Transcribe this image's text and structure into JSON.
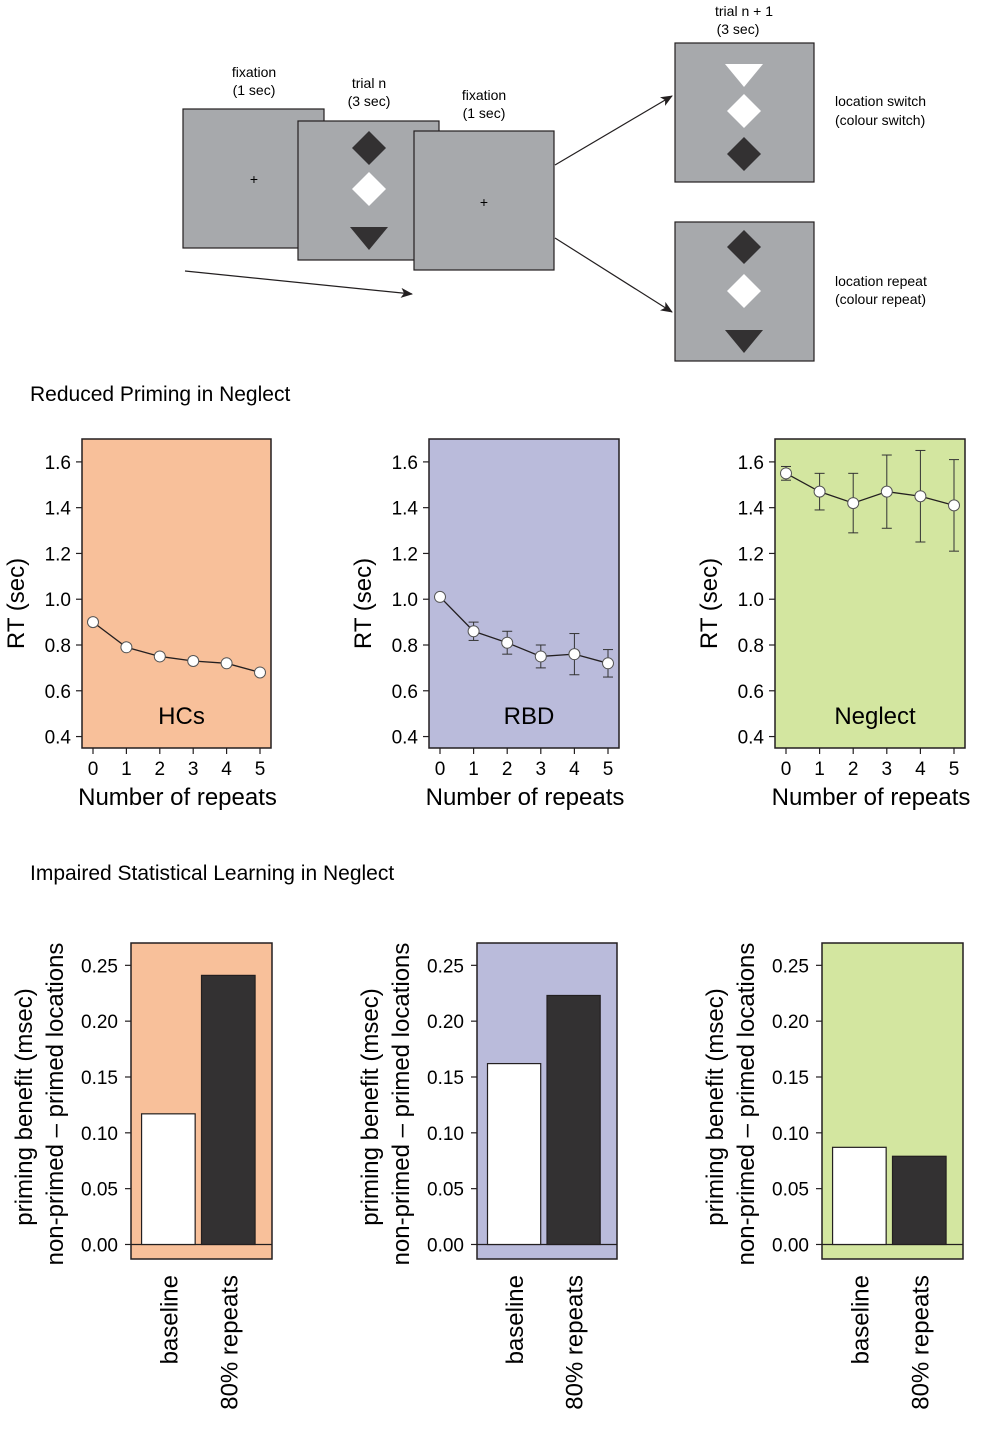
{
  "diagram": {
    "screens": {
      "fixation1": {
        "title": "fixation",
        "duration": "(1 sec)"
      },
      "trial_n": {
        "title": "trial n",
        "duration": "(3 sec)"
      },
      "fixation2": {
        "title": "fixation",
        "duration": "(1 sec)"
      },
      "trial_n1": {
        "title": "trial n + 1",
        "duration": "(3 sec)"
      }
    },
    "fixation_symbol": "+",
    "outcomes": {
      "switch": {
        "line1": "location switch",
        "line2": "(colour switch)"
      },
      "repeat": {
        "line1": "location repeat",
        "line2": "(colour repeat)"
      }
    },
    "colors": {
      "screen": "#a7a9ac",
      "dark": "#333132",
      "light": "#ffffff"
    }
  },
  "sections": {
    "priming": "Reduced Priming in Neglect",
    "learning": "Impaired Statistical Learning in Neglect"
  },
  "chart_data": [
    {
      "type": "line",
      "panel_label": "HCs",
      "bg": "#f8c09a",
      "x": [
        0,
        1,
        2,
        3,
        4,
        5
      ],
      "y": [
        0.9,
        0.79,
        0.75,
        0.73,
        0.72,
        0.68
      ],
      "err": [
        0,
        0,
        0,
        0,
        0,
        0
      ],
      "xlabel": "Number of repeats",
      "ylabel": "RT (sec)",
      "ylim": [
        0.35,
        1.7
      ],
      "yticks": [
        "0.4",
        "0.6",
        "0.8",
        "1.0",
        "1.2",
        "1.4",
        "1.6"
      ],
      "xticks": [
        "0",
        "1",
        "2",
        "3",
        "4",
        "5"
      ]
    },
    {
      "type": "line",
      "panel_label": "RBD",
      "bg": "#babbdb",
      "x": [
        0,
        1,
        2,
        3,
        4,
        5
      ],
      "y": [
        1.01,
        0.86,
        0.81,
        0.75,
        0.76,
        0.72
      ],
      "err": [
        0,
        0.04,
        0.05,
        0.05,
        0.09,
        0.06
      ],
      "xlabel": "Number of repeats",
      "ylabel": "RT (sec)",
      "ylim": [
        0.35,
        1.7
      ],
      "yticks": [
        "0.4",
        "0.6",
        "0.8",
        "1.0",
        "1.2",
        "1.4",
        "1.6"
      ],
      "xticks": [
        "0",
        "1",
        "2",
        "3",
        "4",
        "5"
      ]
    },
    {
      "type": "line",
      "panel_label": "Neglect",
      "bg": "#d3e6a0",
      "x": [
        0,
        1,
        2,
        3,
        4,
        5
      ],
      "y": [
        1.55,
        1.47,
        1.42,
        1.47,
        1.45,
        1.41
      ],
      "err": [
        0.03,
        0.08,
        0.13,
        0.16,
        0.2,
        0.2
      ],
      "xlabel": "Number of repeats",
      "ylabel": "RT (sec)",
      "ylim": [
        0.35,
        1.7
      ],
      "yticks": [
        "0.4",
        "0.6",
        "0.8",
        "1.0",
        "1.2",
        "1.4",
        "1.6"
      ],
      "xticks": [
        "0",
        "1",
        "2",
        "3",
        "4",
        "5"
      ]
    },
    {
      "type": "bar",
      "bg": "#f8c09a",
      "categories": [
        "baseline",
        "80% repeats"
      ],
      "values": [
        0.117,
        0.241
      ],
      "bar_colors": [
        "#ffffff",
        "#333132"
      ],
      "ylabel_line1": "priming benefit (msec)",
      "ylabel_line2": "non-primed – primed locations",
      "ylim": [
        -0.013,
        0.27
      ],
      "yticks": [
        "0.00",
        "0.05",
        "0.10",
        "0.15",
        "0.20",
        "0.25"
      ]
    },
    {
      "type": "bar",
      "bg": "#babbdb",
      "categories": [
        "baseline",
        "80% repeats"
      ],
      "values": [
        0.162,
        0.223
      ],
      "bar_colors": [
        "#ffffff",
        "#333132"
      ],
      "ylabel_line1": "priming benefit (msec)",
      "ylabel_line2": "non-primed – primed locations",
      "ylim": [
        -0.013,
        0.27
      ],
      "yticks": [
        "0.00",
        "0.05",
        "0.10",
        "0.15",
        "0.20",
        "0.25"
      ]
    },
    {
      "type": "bar",
      "bg": "#d3e6a0",
      "categories": [
        "baseline",
        "80% repeats"
      ],
      "values": [
        0.087,
        0.079
      ],
      "bar_colors": [
        "#ffffff",
        "#333132"
      ],
      "ylabel_line1": "priming benefit (msec)",
      "ylabel_line2": "non-primed – primed locations",
      "ylim": [
        -0.013,
        0.27
      ],
      "yticks": [
        "0.00",
        "0.05",
        "0.10",
        "0.15",
        "0.20",
        "0.25"
      ]
    }
  ]
}
